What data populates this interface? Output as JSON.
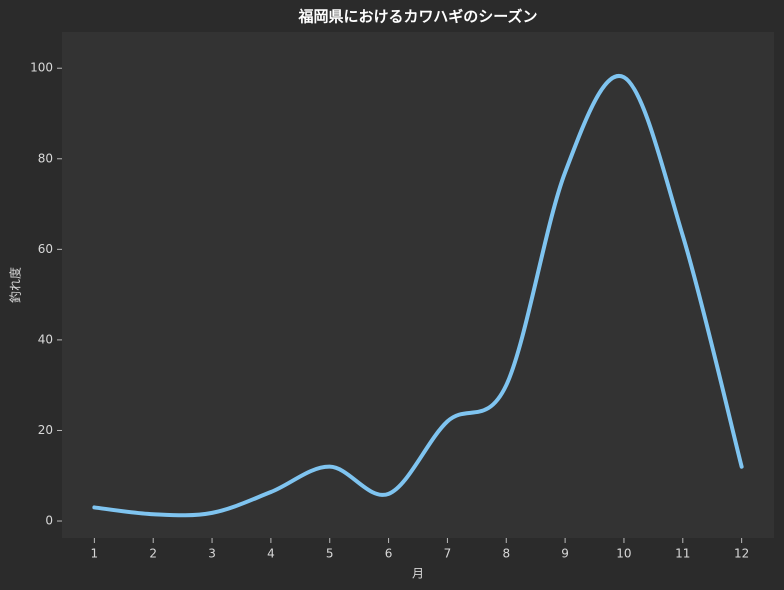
{
  "chart_data": {
    "type": "line",
    "title": "福岡県におけるカワハギのシーズン",
    "x_label": "月",
    "y_label": "釣れ度",
    "x": [
      1,
      2,
      3,
      4,
      5,
      6,
      7,
      8,
      9,
      10,
      11,
      12
    ],
    "series": [
      {
        "name": "釣れ度",
        "color": "#7fc4f0",
        "values": [
          3,
          1.5,
          1.8,
          6.4,
          12,
          6,
          22,
          30,
          77,
          98,
          63,
          12
        ]
      }
    ],
    "xlim": [
      0.45,
      12.55
    ],
    "xticks": [
      1,
      2,
      3,
      4,
      5,
      6,
      7,
      8,
      9,
      10,
      11,
      12
    ],
    "ylim": [
      -3.75,
      108
    ],
    "yticks": [
      0,
      20,
      40,
      60,
      80,
      100
    ],
    "grid": false,
    "legend": false
  }
}
